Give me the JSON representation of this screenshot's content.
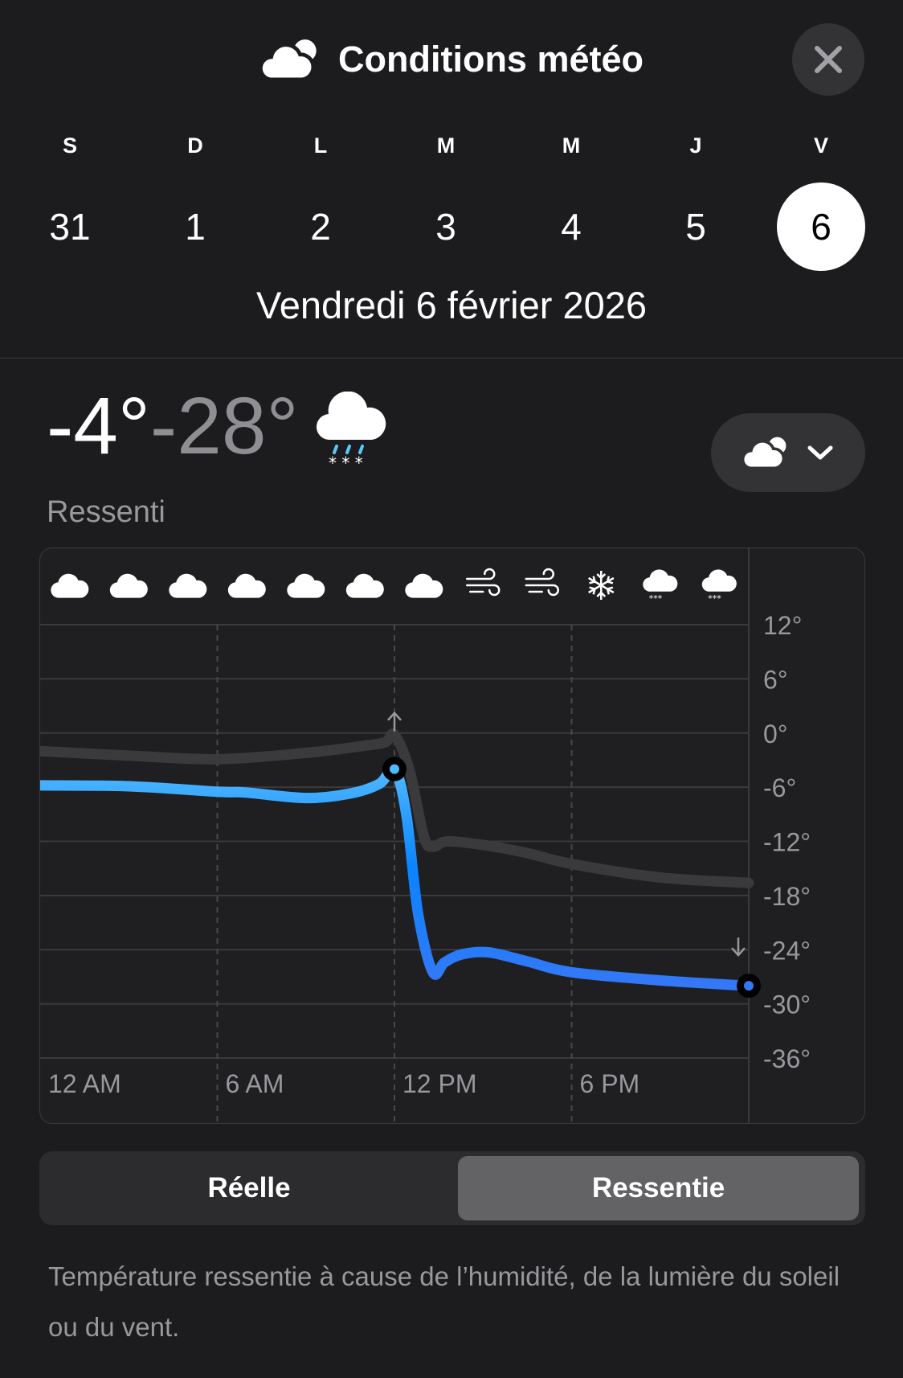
{
  "header": {
    "title": "Conditions météo",
    "title_icon": "cloud-sun-icon",
    "close_icon": "close-icon"
  },
  "week": [
    {
      "letter": "S",
      "day": "31"
    },
    {
      "letter": "D",
      "day": "1"
    },
    {
      "letter": "L",
      "day": "2"
    },
    {
      "letter": "M",
      "day": "3"
    },
    {
      "letter": "M",
      "day": "4"
    },
    {
      "letter": "J",
      "day": "5"
    },
    {
      "letter": "V",
      "day": "6",
      "selected": true
    }
  ],
  "selected_date": "Vendredi 6 février 2026",
  "summary": {
    "high": "-4°",
    "low": "-28°",
    "condition_icon": "cloud-sleet-icon",
    "label": "Ressenti",
    "selector_icon": "cloud-sun-icon",
    "selector_chevron": "chevron-down-icon"
  },
  "hourly_icons": [
    "cloud",
    "cloud",
    "cloud",
    "cloud",
    "cloud",
    "cloud",
    "cloud",
    "wind",
    "wind",
    "snowflake",
    "cloud-snow",
    "cloud-snow"
  ],
  "chart_data": {
    "type": "line",
    "x_unit": "hour",
    "xlim": [
      0,
      24
    ],
    "ylim": [
      -36,
      12
    ],
    "x_ticks": [
      {
        "hour": 0,
        "label": "12 AM"
      },
      {
        "hour": 6,
        "label": "6 AM"
      },
      {
        "hour": 12,
        "label": "12 PM"
      },
      {
        "hour": 18,
        "label": "6 PM"
      }
    ],
    "y_ticks": [
      12,
      6,
      0,
      -6,
      -12,
      -18,
      -24,
      -30,
      -36
    ],
    "y_tick_labels": [
      "12°",
      "6°",
      "0°",
      "-6°",
      "-12°",
      "-18°",
      "-24°",
      "-30°",
      "-36°"
    ],
    "grid": true,
    "series": [
      {
        "key": "actual",
        "color": "#3a3a3c",
        "x": [
          0,
          3,
          6,
          9,
          11,
          11.7,
          12,
          12.5,
          13,
          13.3,
          13.8,
          15,
          16.5,
          18,
          21,
          24
        ],
        "y": [
          -2,
          -2.5,
          -2.9,
          -2.2,
          -1.4,
          -1,
          -0.2,
          -4,
          -11.5,
          -12.6,
          -12,
          -12.4,
          -13.3,
          -14.5,
          -16,
          -16.6
        ]
      },
      {
        "key": "feels_like",
        "color": "#0a84ff",
        "x": [
          0,
          3,
          6,
          7,
          9,
          10.5,
          11.5,
          12,
          12.4,
          12.8,
          13.3,
          13.7,
          14.3,
          15.2,
          16.5,
          18,
          21,
          24
        ],
        "y": [
          -5.8,
          -5.9,
          -6.5,
          -6.6,
          -7.2,
          -6.7,
          -5.6,
          -4,
          -9,
          -20,
          -26.5,
          -25.4,
          -24.5,
          -24.3,
          -25.3,
          -26.5,
          -27.4,
          -28
        ]
      }
    ],
    "markers": [
      {
        "series": "feels_like",
        "hour": 12,
        "value": -4,
        "kind": "high",
        "arrow": "up"
      },
      {
        "series": "feels_like",
        "hour": 24,
        "value": -28,
        "kind": "low",
        "arrow": "down"
      }
    ]
  },
  "segmented": {
    "options": [
      "Réelle",
      "Ressentie"
    ],
    "selected": "Ressentie"
  },
  "footer": "Température ressentie à cause de l’humidité, de la lumière du soleil ou du vent."
}
